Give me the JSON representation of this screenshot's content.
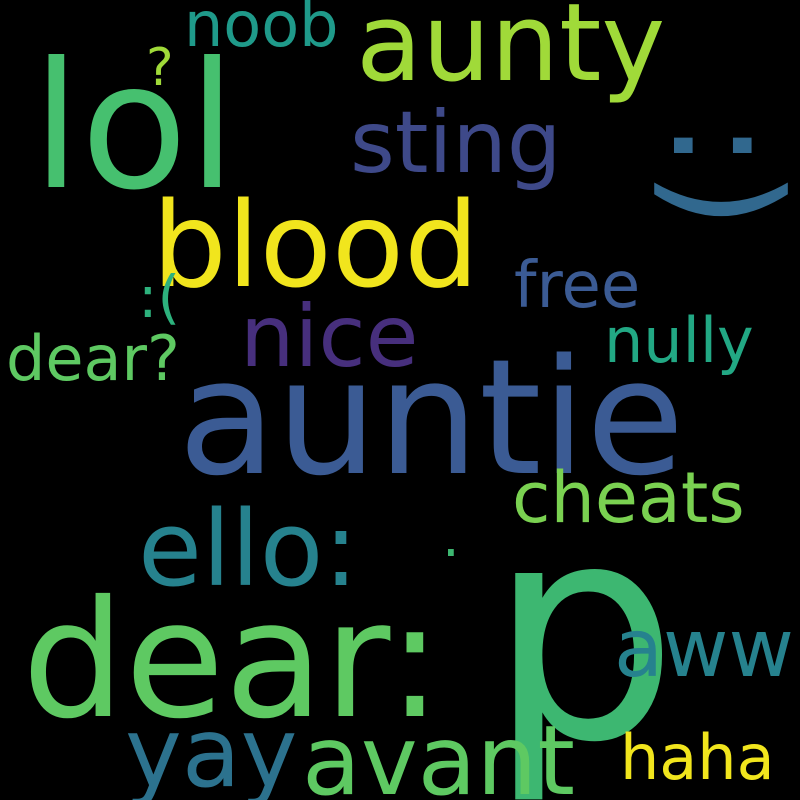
{
  "word_cloud": {
    "background": "#000000",
    "words": [
      {
        "key": "p",
        "text": "p",
        "color": "#3db771",
        "orientation": "horizontal"
      },
      {
        "key": "auntie",
        "text": "auntie",
        "color": "#3b5b94",
        "orientation": "horizontal"
      },
      {
        "key": "dear_colon",
        "text": "dear:",
        "color": "#5ec962",
        "orientation": "horizontal"
      },
      {
        "key": "lol",
        "text": "lol",
        "color": "#46c06f",
        "orientation": "horizontal"
      },
      {
        "key": "blood",
        "text": "blood",
        "color": "#f1e51d",
        "orientation": "horizontal"
      },
      {
        "key": "aunty",
        "text": "aunty",
        "color": "#a0da39",
        "orientation": "horizontal"
      },
      {
        "key": "smiley",
        "text": ":)",
        "color": "#31688e",
        "orientation": "vertical"
      },
      {
        "key": "sting",
        "text": "sting",
        "color": "#3e4989",
        "orientation": "horizontal"
      },
      {
        "key": "ello_colon",
        "text": "ello:",
        "color": "#26828e",
        "orientation": "horizontal"
      },
      {
        "key": "avant",
        "text": "avant",
        "color": "#5ec962",
        "orientation": "horizontal"
      },
      {
        "key": "yay",
        "text": "yay",
        "color": "#2c728e",
        "orientation": "horizontal"
      },
      {
        "key": "nice",
        "text": "nice",
        "color": "#472f7d",
        "orientation": "horizontal"
      },
      {
        "key": "cheats",
        "text": "cheats",
        "color": "#7ad151",
        "orientation": "horizontal"
      },
      {
        "key": "aww",
        "text": "aww",
        "color": "#26828e",
        "orientation": "horizontal"
      },
      {
        "key": "noob",
        "text": "noob",
        "color": "#1f9a8a",
        "orientation": "horizontal"
      },
      {
        "key": "free",
        "text": "free",
        "color": "#3b5b94",
        "orientation": "horizontal"
      },
      {
        "key": "nully",
        "text": "nully",
        "color": "#22a884",
        "orientation": "horizontal"
      },
      {
        "key": "dear_q",
        "text": "dear?",
        "color": "#5ec962",
        "orientation": "horizontal"
      },
      {
        "key": "haha",
        "text": "haha",
        "color": "#f1e51d",
        "orientation": "horizontal"
      },
      {
        "key": "dot",
        "text": ".",
        "color": "#3db771",
        "orientation": "horizontal"
      },
      {
        "key": "frown",
        "text": ":(",
        "color": "#2db27d",
        "orientation": "horizontal"
      },
      {
        "key": "question",
        "text": "?",
        "color": "#a0da39",
        "orientation": "horizontal"
      }
    ]
  }
}
